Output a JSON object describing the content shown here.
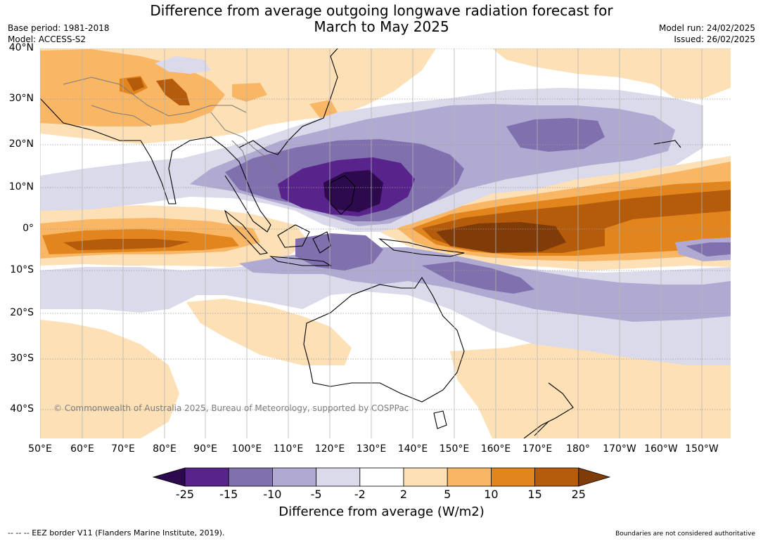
{
  "title_line1": "Difference from average outgoing longwave radiation forecast for",
  "title_line2": "March to May 2025",
  "base_period": "Base period: 1981-2018",
  "model": "Model: ACCESS-S2",
  "model_run": "Model run: 24/02/2025",
  "issued": "Issued: 26/02/2025",
  "copyright": "© Commonwealth of Australia 2025, Bureau of Meteorology, supported by COSPPac",
  "footer_left": "--  --  -- EEZ border V11 (Flanders Marine Institute, 2019).",
  "footer_right": "Boundaries are not considered authoritative",
  "latitude_labels": [
    "40°N",
    "30°N",
    "20°N",
    "10°N",
    "0°",
    "10°S",
    "20°S",
    "30°S",
    "40°S"
  ],
  "longitude_labels": [
    "50°E",
    "60°E",
    "70°E",
    "80°E",
    "90°E",
    "100°E",
    "110°E",
    "120°E",
    "130°E",
    "140°E",
    "150°E",
    "160°E",
    "170°E",
    "180°",
    "170°W",
    "160°W",
    "150°W"
  ],
  "colorbar": {
    "title": "Difference from average (W/m2)",
    "ticks": [
      "-25",
      "-15",
      "-10",
      "-5",
      "-2",
      "2",
      "5",
      "10",
      "15",
      "25"
    ],
    "colors": [
      "#2d0a4e",
      "#58238a",
      "#8070ad",
      "#b0a9d2",
      "#dadaeb",
      "#ffffff",
      "#fde0b6",
      "#f9b665",
      "#e2851c",
      "#b45c0b",
      "#7f3b08"
    ]
  },
  "colors": {
    "grid": "#9a9a9a",
    "coast": "#000000",
    "border": "#7a7a7a"
  }
}
